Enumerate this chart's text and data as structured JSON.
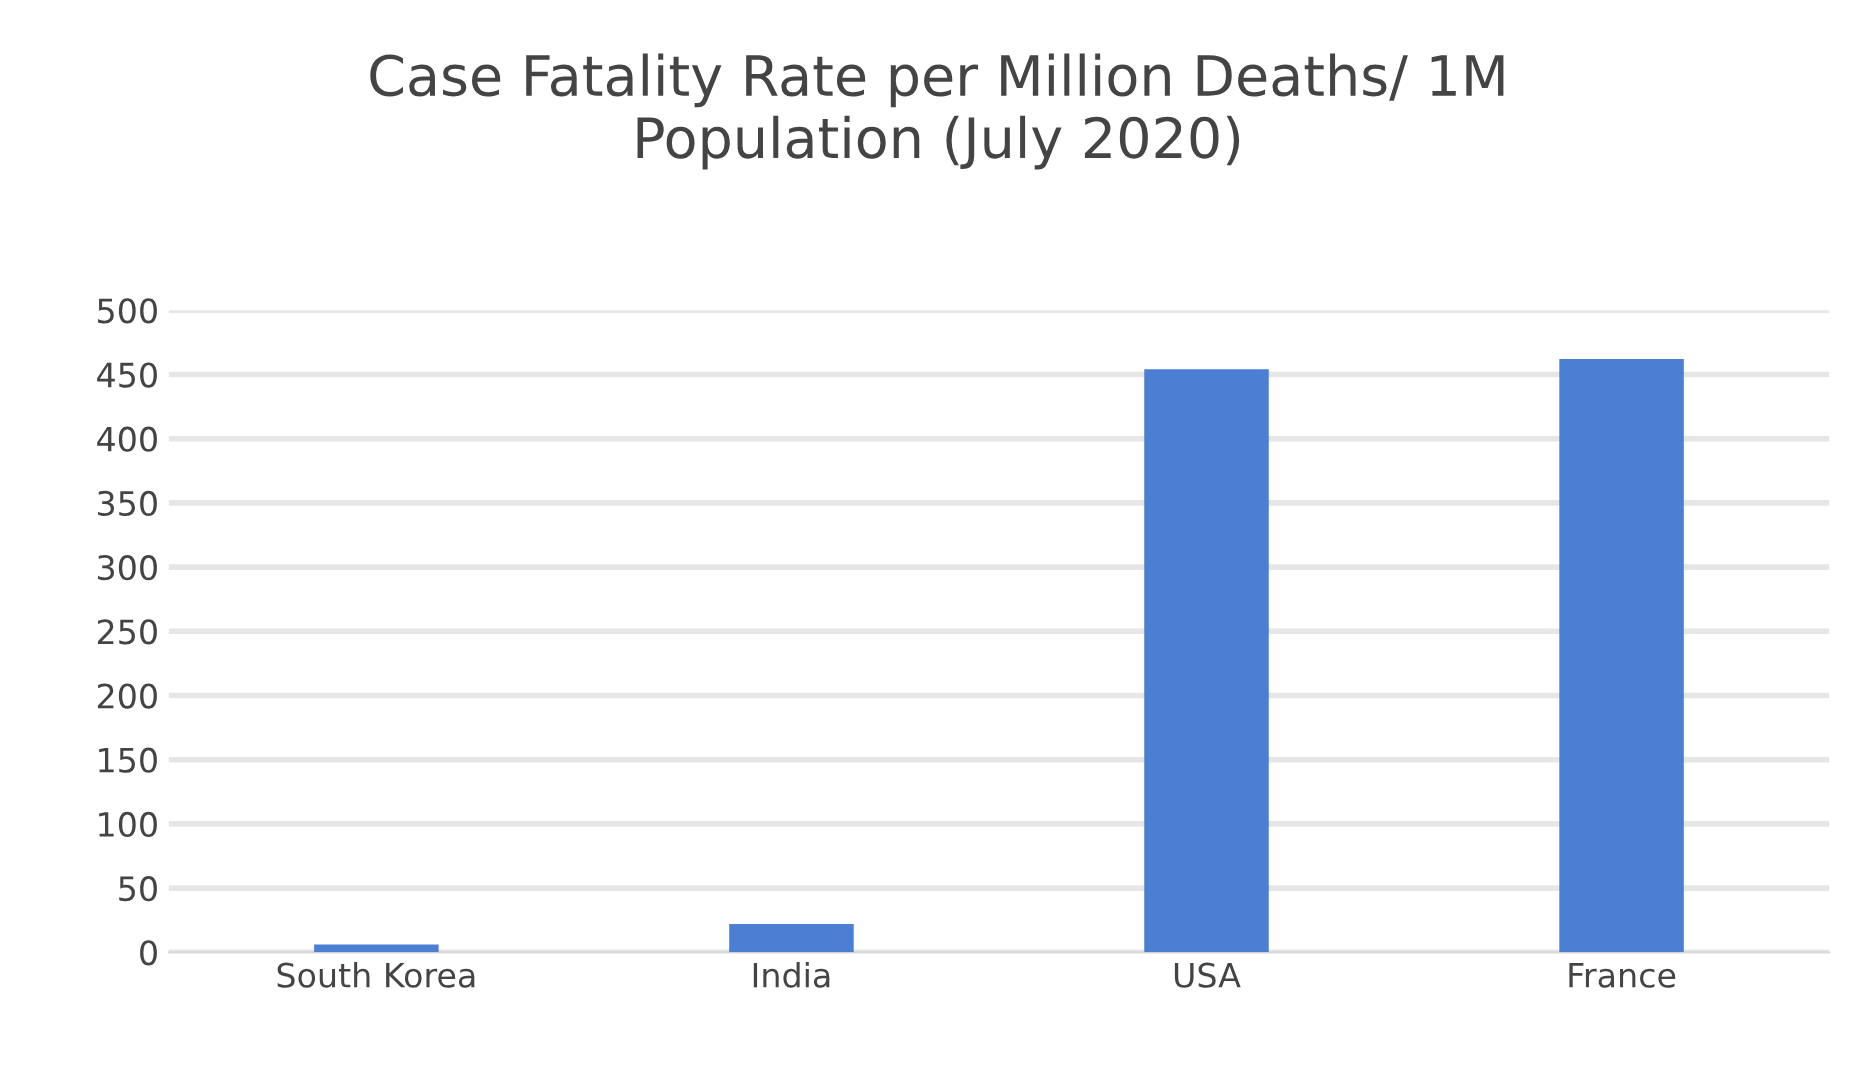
{
  "chart_data": {
    "type": "bar",
    "title": "Case Fatality Rate per Million Deaths/ 1M\nPopulation (July 2020)",
    "categories": [
      "South Korea",
      "India",
      "USA",
      "France"
    ],
    "values": [
      6,
      22,
      454,
      462
    ],
    "color": "#4a7fd4",
    "ylim": [
      0,
      500
    ],
    "yticks": [
      0,
      50,
      100,
      150,
      200,
      250,
      300,
      350,
      400,
      450,
      500
    ],
    "grid": "y"
  }
}
